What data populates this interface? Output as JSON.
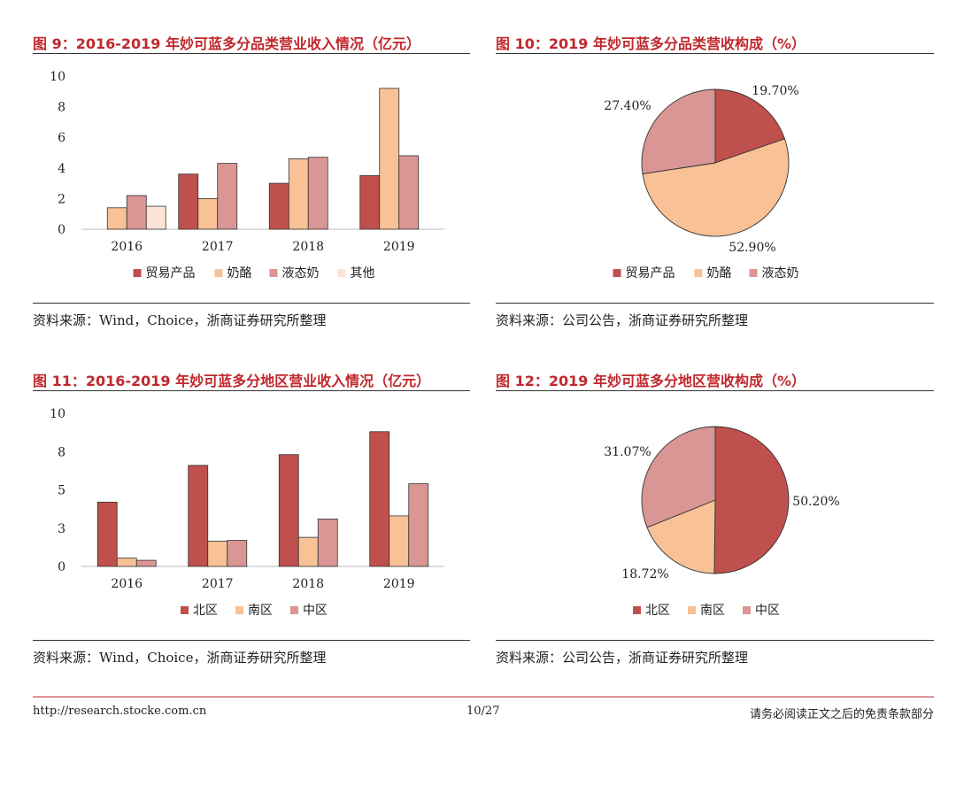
{
  "charts": {
    "fig9": {
      "title": "图 9：2016-2019 年妙可蓝多分品类营业收入情况（亿元）",
      "source": "资料来源：Wind，Choice，浙商证券研究所整理"
    },
    "fig10": {
      "title": "图 10：2019 年妙可蓝多分品类营收构成（%）",
      "source": "资料来源：公司公告，浙商证券研究所整理"
    },
    "fig11": {
      "title": "图 11：2016-2019 年妙可蓝多分地区营业收入情况（亿元）",
      "source": "资料来源：Wind，Choice，浙商证券研究所整理"
    },
    "fig12": {
      "title": "图 12：2019 年妙可蓝多分地区营收构成（%）",
      "source": "资料来源：公司公告，浙商证券研究所整理"
    }
  },
  "chart_data": [
    {
      "id": "fig9",
      "type": "bar",
      "title": "图 9：2016-2019 年妙可蓝多分品类营业收入情况（亿元）",
      "categories": [
        "2016",
        "2017",
        "2018",
        "2019"
      ],
      "ylim": [
        0,
        10
      ],
      "yticks": [
        "0",
        "2",
        "4",
        "6",
        "8",
        "10"
      ],
      "legend_position": "bottom",
      "series": [
        {
          "name": "贸易产品",
          "color": "#c0504d",
          "values": [
            0,
            3.6,
            3.0,
            3.5
          ]
        },
        {
          "name": "奶酪",
          "color": "#f8c196",
          "values": [
            1.4,
            2.0,
            4.6,
            9.2
          ]
        },
        {
          "name": "液态奶",
          "color": "#d99694",
          "values": [
            2.2,
            4.3,
            4.7,
            4.8
          ]
        },
        {
          "name": "其他",
          "color": "#fbe3d6",
          "values": [
            1.5,
            0,
            0,
            0
          ]
        }
      ]
    },
    {
      "id": "fig10",
      "type": "pie",
      "title": "图 10：2019 年妙可蓝多分品类营收构成（%）",
      "legend_position": "bottom",
      "slices": [
        {
          "name": "贸易产品",
          "value": 19.7,
          "label": "19.70%",
          "color": "#c0504d"
        },
        {
          "name": "奶酪",
          "value": 52.9,
          "label": "52.90%",
          "color": "#f8c196"
        },
        {
          "name": "液态奶",
          "value": 27.4,
          "label": "27.40%",
          "color": "#d99694"
        }
      ]
    },
    {
      "id": "fig11",
      "type": "bar",
      "title": "图 11：2016-2019 年妙可蓝多分地区营业收入情况（亿元）",
      "categories": [
        "2016",
        "2017",
        "2018",
        "2019"
      ],
      "ylim": [
        0,
        10
      ],
      "yticks": [
        "0",
        "3",
        "5",
        "8",
        "10"
      ],
      "legend_position": "bottom",
      "series": [
        {
          "name": "北区",
          "color": "#c0504d",
          "values": [
            4.2,
            6.6,
            7.3,
            8.8
          ]
        },
        {
          "name": "南区",
          "color": "#f8c196",
          "values": [
            0.55,
            1.65,
            1.9,
            3.3
          ]
        },
        {
          "name": "中区",
          "color": "#d99694",
          "values": [
            0.4,
            1.7,
            3.1,
            5.4
          ]
        }
      ]
    },
    {
      "id": "fig12",
      "type": "pie",
      "title": "图 12：2019 年妙可蓝多分地区营收构成（%）",
      "legend_position": "bottom",
      "slices": [
        {
          "name": "北区",
          "value": 50.2,
          "label": "50.20%",
          "color": "#c0504d"
        },
        {
          "name": "南区",
          "value": 18.72,
          "label": "18.72%",
          "color": "#f8c196"
        },
        {
          "name": "中区",
          "value": 31.07,
          "label": "31.07%",
          "color": "#d99694"
        }
      ]
    }
  ],
  "footer": {
    "url": "http://research.stocke.com.cn",
    "page": "10/27",
    "disclaimer": "请务必阅读正文之后的免责条款部分"
  }
}
